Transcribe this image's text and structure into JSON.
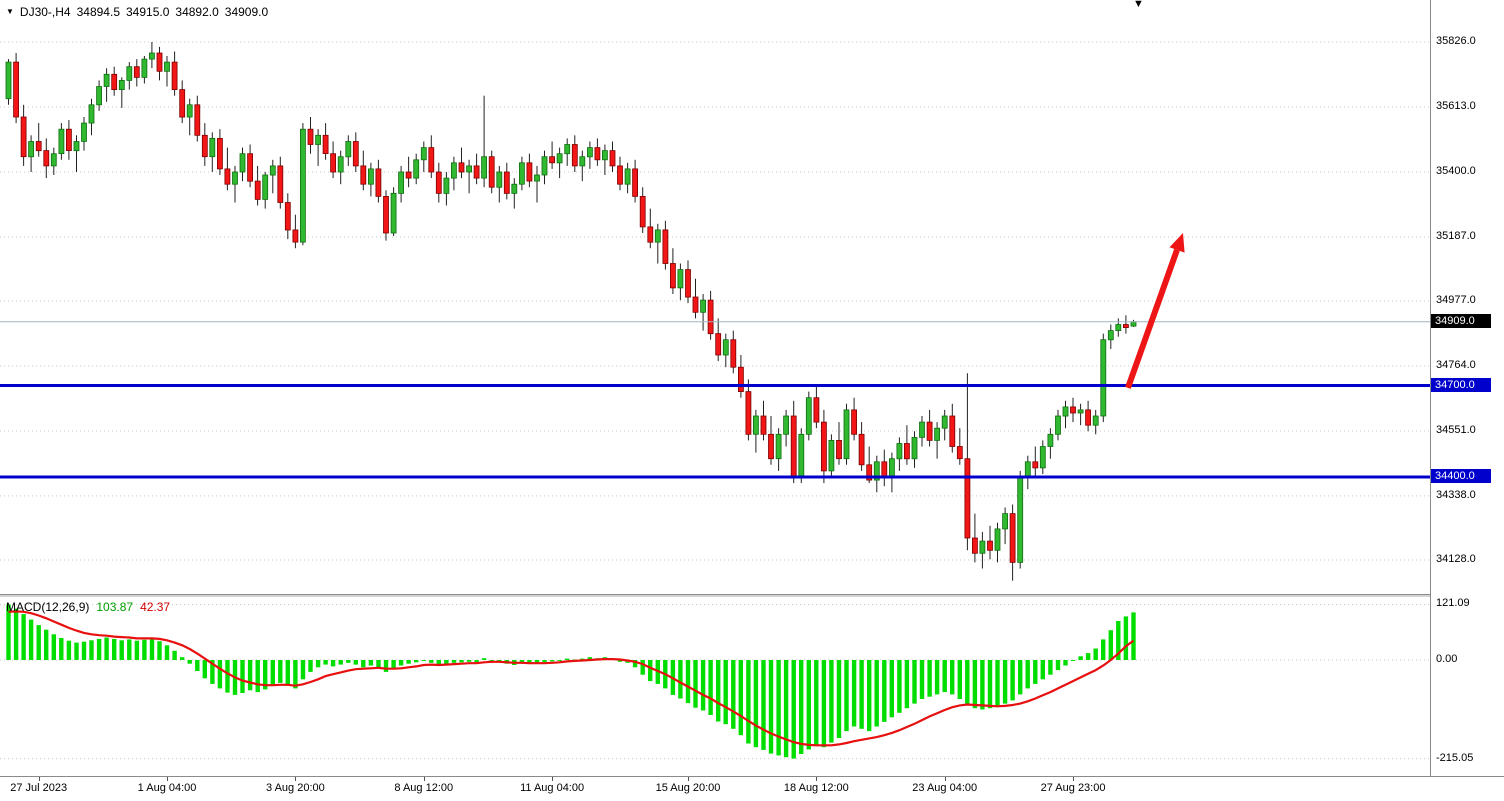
{
  "header": {
    "symbol_period": "DJ30-,H4",
    "open": "34894.5",
    "high": "34915.0",
    "low": "34892.0",
    "close": "34909.0"
  },
  "macd_label": {
    "name": "MACD(12,26,9)",
    "main_value": "103.87",
    "signal_value": "42.37"
  },
  "colors": {
    "bull": "#30b830",
    "bull_border": "#0f6e0f",
    "bear": "#f21616",
    "bear_border": "#7e0000",
    "wick": "#222222",
    "grid": "#c9c9c9",
    "bid_line": "#9fb6c0",
    "hline": "#0000cd",
    "arrow": "#ed1515",
    "macd_bar": "#00de00",
    "macd_signal": "#e80f0f",
    "badge_current_bg": "#000000",
    "badge_level_bg": "#0000cd",
    "macd_value_color": "#00a000",
    "signal_value_color": "#d00000"
  },
  "chart_data": {
    "type": "candlestick",
    "symbol": "DJ30-",
    "timeframe": "H4",
    "last_ohlc": {
      "open": 34894.5,
      "high": 34915.0,
      "low": 34892.0,
      "close": 34909.0
    },
    "price_axis": {
      "ticks": [
        {
          "label": "35826.0",
          "value": 35826.0
        },
        {
          "label": "35613.0",
          "value": 35613.0
        },
        {
          "label": "35400.0",
          "value": 35400.0
        },
        {
          "label": "35187.0",
          "value": 35187.0
        },
        {
          "label": "34977.0",
          "value": 34977.0
        },
        {
          "label": "34764.0",
          "value": 34764.0
        },
        {
          "label": "34551.0",
          "value": 34551.0
        },
        {
          "label": "34338.0",
          "value": 34338.0
        },
        {
          "label": "34128.0",
          "value": 34128.0
        }
      ],
      "current": {
        "label": "34909.0",
        "value": 34909.0
      }
    },
    "horizontal_levels": [
      {
        "label": "34700.0",
        "value": 34700.0
      },
      {
        "label": "34400.0",
        "value": 34400.0
      }
    ],
    "time_ticks": [
      {
        "label": "27 Jul 2023",
        "index": 4
      },
      {
        "label": "1 Aug 04:00",
        "index": 21
      },
      {
        "label": "3 Aug 20:00",
        "index": 38
      },
      {
        "label": "8 Aug 12:00",
        "index": 55
      },
      {
        "label": "11 Aug 04:00",
        "index": 72
      },
      {
        "label": "15 Aug 20:00",
        "index": 90
      },
      {
        "label": "18 Aug 12:00",
        "index": 107
      },
      {
        "label": "23 Aug 04:00",
        "index": 124
      },
      {
        "label": "27 Aug 23:00",
        "index": 141
      }
    ],
    "trend_arrow": {
      "from": {
        "index": 148.6,
        "price": 34692
      },
      "to": {
        "index": 155.9,
        "price": 35200
      }
    },
    "candles": [
      [
        35640,
        35770,
        35620,
        35760
      ],
      [
        35760,
        35790,
        35560,
        35580
      ],
      [
        35580,
        35620,
        35420,
        35450
      ],
      [
        35450,
        35520,
        35400,
        35500
      ],
      [
        35500,
        35560,
        35450,
        35470
      ],
      [
        35470,
        35510,
        35380,
        35420
      ],
      [
        35420,
        35480,
        35390,
        35460
      ],
      [
        35460,
        35560,
        35440,
        35540
      ],
      [
        35540,
        35570,
        35440,
        35470
      ],
      [
        35470,
        35520,
        35400,
        35500
      ],
      [
        35500,
        35580,
        35470,
        35560
      ],
      [
        35560,
        35640,
        35520,
        35620
      ],
      [
        35620,
        35700,
        35600,
        35680
      ],
      [
        35680,
        35740,
        35630,
        35720
      ],
      [
        35720,
        35745,
        35650,
        35670
      ],
      [
        35670,
        35710,
        35610,
        35700
      ],
      [
        35700,
        35760,
        35670,
        35745
      ],
      [
        35745,
        35770,
        35680,
        35710
      ],
      [
        35710,
        35780,
        35690,
        35770
      ],
      [
        35770,
        35826,
        35740,
        35790
      ],
      [
        35790,
        35810,
        35700,
        35730
      ],
      [
        35730,
        35780,
        35680,
        35760
      ],
      [
        35760,
        35795,
        35650,
        35670
      ],
      [
        35670,
        35700,
        35560,
        35580
      ],
      [
        35580,
        35640,
        35520,
        35620
      ],
      [
        35620,
        35650,
        35500,
        35520
      ],
      [
        35520,
        35560,
        35420,
        35450
      ],
      [
        35450,
        35530,
        35400,
        35510
      ],
      [
        35510,
        35540,
        35390,
        35410
      ],
      [
        35410,
        35480,
        35340,
        35360
      ],
      [
        35360,
        35420,
        35300,
        35400
      ],
      [
        35400,
        35480,
        35370,
        35460
      ],
      [
        35460,
        35490,
        35350,
        35370
      ],
      [
        35370,
        35420,
        35290,
        35310
      ],
      [
        35310,
        35400,
        35280,
        35390
      ],
      [
        35390,
        35440,
        35330,
        35420
      ],
      [
        35420,
        35450,
        35280,
        35300
      ],
      [
        35300,
        35330,
        35180,
        35210
      ],
      [
        35210,
        35260,
        35150,
        35170
      ],
      [
        35170,
        35560,
        35160,
        35540
      ],
      [
        35540,
        35580,
        35460,
        35490
      ],
      [
        35490,
        35540,
        35420,
        35520
      ],
      [
        35520,
        35560,
        35440,
        35460
      ],
      [
        35460,
        35500,
        35380,
        35400
      ],
      [
        35400,
        35470,
        35360,
        35450
      ],
      [
        35450,
        35520,
        35420,
        35500
      ],
      [
        35500,
        35530,
        35400,
        35420
      ],
      [
        35420,
        35470,
        35340,
        35360
      ],
      [
        35360,
        35430,
        35320,
        35410
      ],
      [
        35410,
        35440,
        35300,
        35320
      ],
      [
        35320,
        35340,
        35175,
        35200
      ],
      [
        35200,
        35350,
        35190,
        35330
      ],
      [
        35330,
        35420,
        35300,
        35400
      ],
      [
        35400,
        35450,
        35350,
        35380
      ],
      [
        35380,
        35460,
        35360,
        35440
      ],
      [
        35440,
        35500,
        35400,
        35480
      ],
      [
        35480,
        35520,
        35380,
        35400
      ],
      [
        35400,
        35430,
        35300,
        35330
      ],
      [
        35330,
        35400,
        35290,
        35380
      ],
      [
        35380,
        35450,
        35340,
        35430
      ],
      [
        35430,
        35480,
        35380,
        35400
      ],
      [
        35400,
        35440,
        35330,
        35420
      ],
      [
        35420,
        35460,
        35360,
        35380
      ],
      [
        35380,
        35650,
        35350,
        35450
      ],
      [
        35450,
        35470,
        35330,
        35350
      ],
      [
        35350,
        35420,
        35300,
        35400
      ],
      [
        35400,
        35430,
        35310,
        35330
      ],
      [
        35330,
        35380,
        35280,
        35360
      ],
      [
        35360,
        35450,
        35340,
        35430
      ],
      [
        35430,
        35460,
        35350,
        35370
      ],
      [
        35370,
        35420,
        35300,
        35390
      ],
      [
        35390,
        35470,
        35360,
        35450
      ],
      [
        35450,
        35500,
        35410,
        35430
      ],
      [
        35430,
        35480,
        35380,
        35460
      ],
      [
        35460,
        35510,
        35420,
        35490
      ],
      [
        35490,
        35520,
        35400,
        35420
      ],
      [
        35420,
        35470,
        35370,
        35450
      ],
      [
        35450,
        35500,
        35410,
        35480
      ],
      [
        35480,
        35510,
        35420,
        35440
      ],
      [
        35440,
        35490,
        35390,
        35470
      ],
      [
        35470,
        35500,
        35400,
        35420
      ],
      [
        35420,
        35450,
        35340,
        35360
      ],
      [
        35360,
        35430,
        35330,
        35410
      ],
      [
        35410,
        35440,
        35300,
        35320
      ],
      [
        35320,
        35350,
        35200,
        35220
      ],
      [
        35220,
        35280,
        35150,
        35170
      ],
      [
        35170,
        35230,
        35100,
        35210
      ],
      [
        35210,
        35240,
        35080,
        35100
      ],
      [
        35100,
        35150,
        35000,
        35020
      ],
      [
        35020,
        35100,
        34980,
        35080
      ],
      [
        35080,
        35110,
        34970,
        34990
      ],
      [
        34990,
        35050,
        34920,
        34940
      ],
      [
        34940,
        35000,
        34880,
        34980
      ],
      [
        34980,
        35010,
        34850,
        34870
      ],
      [
        34870,
        34920,
        34780,
        34800
      ],
      [
        34800,
        34870,
        34760,
        34850
      ],
      [
        34850,
        34880,
        34740,
        34760
      ],
      [
        34760,
        34800,
        34660,
        34680
      ],
      [
        34680,
        34720,
        34520,
        34540
      ],
      [
        34540,
        34620,
        34480,
        34600
      ],
      [
        34600,
        34650,
        34520,
        34540
      ],
      [
        34540,
        34600,
        34440,
        34460
      ],
      [
        34460,
        34560,
        34420,
        34540
      ],
      [
        34540,
        34620,
        34500,
        34600
      ],
      [
        34600,
        34650,
        34380,
        34400
      ],
      [
        34400,
        34560,
        34380,
        34540
      ],
      [
        34540,
        34680,
        34520,
        34660
      ],
      [
        34660,
        34700,
        34560,
        34580
      ],
      [
        34580,
        34620,
        34380,
        34420
      ],
      [
        34420,
        34540,
        34400,
        34520
      ],
      [
        34520,
        34580,
        34440,
        34460
      ],
      [
        34460,
        34640,
        34440,
        34620
      ],
      [
        34620,
        34660,
        34520,
        34540
      ],
      [
        34540,
        34580,
        34420,
        34440
      ],
      [
        34440,
        34500,
        34380,
        34390
      ],
      [
        34390,
        34470,
        34350,
        34450
      ],
      [
        34450,
        34490,
        34370,
        34400
      ],
      [
        34400,
        34480,
        34350,
        34460
      ],
      [
        34460,
        34530,
        34420,
        34510
      ],
      [
        34510,
        34570,
        34440,
        34460
      ],
      [
        34460,
        34550,
        34430,
        34530
      ],
      [
        34530,
        34600,
        34500,
        34580
      ],
      [
        34580,
        34620,
        34500,
        34520
      ],
      [
        34520,
        34580,
        34460,
        34560
      ],
      [
        34560,
        34620,
        34520,
        34600
      ],
      [
        34600,
        34640,
        34480,
        34500
      ],
      [
        34500,
        34560,
        34440,
        34460
      ],
      [
        34460,
        34740,
        34160,
        34200
      ],
      [
        34200,
        34280,
        34120,
        34150
      ],
      [
        34150,
        34220,
        34100,
        34190
      ],
      [
        34190,
        34240,
        34130,
        34160
      ],
      [
        34160,
        34250,
        34120,
        34230
      ],
      [
        34230,
        34300,
        34180,
        34280
      ],
      [
        34280,
        34310,
        34060,
        34120
      ],
      [
        34120,
        34420,
        34100,
        34400
      ],
      [
        34400,
        34470,
        34360,
        34450
      ],
      [
        34450,
        34500,
        34400,
        34430
      ],
      [
        34430,
        34520,
        34410,
        34500
      ],
      [
        34500,
        34560,
        34460,
        34540
      ],
      [
        34540,
        34620,
        34520,
        34600
      ],
      [
        34600,
        34650,
        34560,
        34630
      ],
      [
        34630,
        34660,
        34580,
        34610
      ],
      [
        34610,
        34640,
        34570,
        34620
      ],
      [
        34620,
        34650,
        34550,
        34570
      ],
      [
        34570,
        34620,
        34540,
        34600
      ],
      [
        34600,
        34870,
        34580,
        34850
      ],
      [
        34850,
        34900,
        34820,
        34880
      ],
      [
        34880,
        34920,
        34860,
        34900
      ],
      [
        34900,
        34930,
        34870,
        34890
      ],
      [
        34894.5,
        34915,
        34892,
        34909
      ]
    ],
    "indicator": {
      "name": "MACD",
      "params": [
        12,
        26,
        9
      ],
      "last_values": {
        "macd": 103.87,
        "signal": 42.37
      },
      "axis_ticks": [
        {
          "label": "121.09",
          "value": 121.09
        },
        {
          "label": "0.00",
          "value": 0
        },
        {
          "label": "-215.05",
          "value": -215.05
        }
      ],
      "histogram": [
        121.09,
        112,
        100,
        88,
        76,
        66,
        56,
        48,
        42,
        38,
        40,
        43,
        46,
        49,
        46,
        43,
        45,
        42,
        44,
        47,
        41,
        32,
        20,
        6,
        -8,
        -24,
        -40,
        -52,
        -62,
        -71,
        -76,
        -72,
        -66,
        -70,
        -64,
        -56,
        -50,
        -56,
        -62,
        -42,
        -26,
        -16,
        -10,
        -14,
        -10,
        -6,
        -10,
        -16,
        -12,
        -16,
        -26,
        -20,
        -12,
        -8,
        -5,
        -2,
        -6,
        -12,
        -10,
        -6,
        -5,
        -4,
        -5,
        4,
        0,
        -4,
        -8,
        -11,
        -6,
        -9,
        -8,
        -5,
        -3,
        0,
        3,
        1,
        3,
        6,
        4,
        6,
        3,
        -4,
        -6,
        -16,
        -32,
        -46,
        -52,
        -62,
        -76,
        -84,
        -94,
        -104,
        -110,
        -120,
        -134,
        -140,
        -150,
        -164,
        -182,
        -190,
        -196,
        -204,
        -208,
        -212,
        -215.05,
        -205,
        -195,
        -185,
        -190,
        -180,
        -170,
        -155,
        -145,
        -150,
        -155,
        -145,
        -135,
        -125,
        -115,
        -105,
        -95,
        -85,
        -80,
        -75,
        -70,
        -75,
        -85,
        -95,
        -105,
        -108,
        -105,
        -100,
        -95,
        -88,
        -75,
        -62,
        -52,
        -42,
        -32,
        -22,
        -12,
        -2,
        8,
        15,
        25,
        45,
        65,
        85,
        95,
        103.87
      ],
      "signal": [
        105,
        106,
        105,
        102,
        97,
        91,
        84,
        77,
        70,
        64,
        59,
        56,
        54,
        53,
        51,
        50,
        49,
        47,
        47,
        47,
        46,
        43,
        38,
        32,
        24,
        14,
        3,
        -8,
        -19,
        -29,
        -38,
        -45,
        -49,
        -53,
        -55,
        -55,
        -54,
        -54,
        -56,
        -53,
        -48,
        -42,
        -35,
        -31,
        -27,
        -23,
        -20,
        -19,
        -18,
        -17,
        -19,
        -19,
        -18,
        -16,
        -14,
        -11,
        -10,
        -11,
        -10,
        -9,
        -8,
        -7,
        -7,
        -5,
        -4,
        -4,
        -5,
        -6,
        -6,
        -7,
        -7,
        -7,
        -6,
        -5,
        -3,
        -2,
        -1,
        0,
        1,
        2,
        2,
        1,
        -1,
        -4,
        -9,
        -17,
        -24,
        -31,
        -40,
        -49,
        -58,
        -67,
        -76,
        -84,
        -94,
        -103,
        -112,
        -122,
        -133,
        -143,
        -152,
        -160,
        -167,
        -173,
        -179,
        -183,
        -185,
        -186,
        -186,
        -186,
        -184,
        -181,
        -177,
        -174,
        -171,
        -168,
        -164,
        -159,
        -153,
        -146,
        -139,
        -131,
        -123,
        -116,
        -109,
        -103,
        -99,
        -97,
        -98,
        -99,
        -100,
        -101,
        -100,
        -98,
        -95,
        -90,
        -84,
        -77,
        -70,
        -62,
        -54,
        -46,
        -38,
        -30,
        -22,
        -12,
        0,
        14,
        30,
        42.37
      ]
    }
  }
}
